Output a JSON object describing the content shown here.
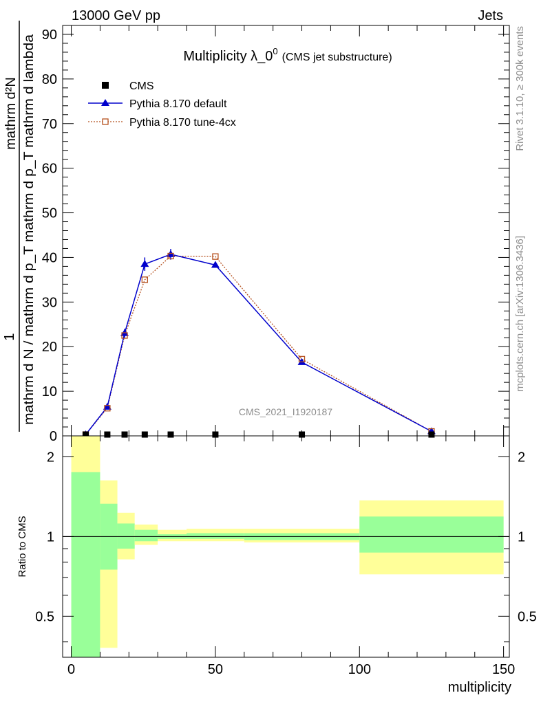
{
  "header": {
    "left": "13000 GeV pp",
    "right": "Jets"
  },
  "side_labels": {
    "top": "Rivet 3.1.10, ≥ 300k events",
    "bottom": "mcplots.cern.ch [arXiv:1306.3436]"
  },
  "chart_data": [
    {
      "type": "line",
      "title_main": "Multiplicity λ_0",
      "title_sup": "0",
      "title_sub": "(CMS jet substructure)",
      "ylabel_numerator": "1",
      "ylabel_denominator": "mathrm d N / mathrm d p_T mathrm d p_T mathrm d lambda",
      "ylabel_d2n": "mathrm d²N",
      "watermark": "CMS_2021_I1920187",
      "xlim": [
        -3,
        152
      ],
      "ylim": [
        0,
        92
      ],
      "yticks": [
        0,
        10,
        20,
        30,
        40,
        50,
        60,
        70,
        80,
        90
      ],
      "legend_position": "top-left",
      "series": [
        {
          "name": "CMS",
          "color": "#000000",
          "marker": "square",
          "x": [
            5,
            12.5,
            18.5,
            25.5,
            34.5,
            50,
            80,
            125
          ],
          "y": [
            0.3,
            0.3,
            0.3,
            0.3,
            0.3,
            0.3,
            0.3,
            0.3
          ]
        },
        {
          "name": "Pythia 8.170 default",
          "color": "#0000cc",
          "marker": "triangle",
          "x": [
            5,
            12.5,
            18.5,
            25.5,
            34.5,
            50,
            80,
            125
          ],
          "y": [
            0.3,
            6.5,
            23.0,
            38.5,
            40.7,
            38.3,
            16.5,
            1.0
          ],
          "yerr": [
            0.1,
            0.5,
            1.0,
            1.5,
            1.2,
            0.6,
            0.4,
            0.3
          ]
        },
        {
          "name": "Pythia 8.170 tune-4cx",
          "color": "#b5501e",
          "marker": "open-square",
          "x": [
            5,
            12.5,
            18.5,
            25.5,
            34.5,
            50,
            80,
            125
          ],
          "y": [
            0.3,
            6.2,
            22.5,
            35.0,
            40.3,
            40.2,
            17.2,
            1.0
          ]
        }
      ]
    },
    {
      "type": "bar",
      "ylabel": "Ratio to CMS",
      "xlabel": "multiplicity",
      "xlim": [
        -3,
        152
      ],
      "ylim": [
        0.35,
        2.4
      ],
      "yscale": "log",
      "yticks": [
        0.5,
        1,
        2
      ],
      "xticks": [
        0,
        50,
        100,
        150
      ],
      "reference_line": 1,
      "bands": [
        {
          "x0": 0,
          "x1": 10,
          "inner": [
            0.35,
            1.75
          ],
          "outer": [
            0.35,
            2.4
          ]
        },
        {
          "x0": 10,
          "x1": 16,
          "inner": [
            0.75,
            1.33
          ],
          "outer": [
            0.38,
            1.63
          ]
        },
        {
          "x0": 16,
          "x1": 22,
          "inner": [
            0.9,
            1.12
          ],
          "outer": [
            0.82,
            1.23
          ]
        },
        {
          "x0": 22,
          "x1": 30,
          "inner": [
            0.96,
            1.06
          ],
          "outer": [
            0.93,
            1.11
          ]
        },
        {
          "x0": 30,
          "x1": 40,
          "inner": [
            0.98,
            1.02
          ],
          "outer": [
            0.96,
            1.06
          ]
        },
        {
          "x0": 40,
          "x1": 60,
          "inner": [
            0.98,
            1.03
          ],
          "outer": [
            0.96,
            1.07
          ]
        },
        {
          "x0": 60,
          "x1": 100,
          "inner": [
            0.97,
            1.03
          ],
          "outer": [
            0.95,
            1.07
          ]
        },
        {
          "x0": 100,
          "x1": 150,
          "inner": [
            0.87,
            1.19
          ],
          "outer": [
            0.72,
            1.37
          ]
        }
      ]
    }
  ]
}
